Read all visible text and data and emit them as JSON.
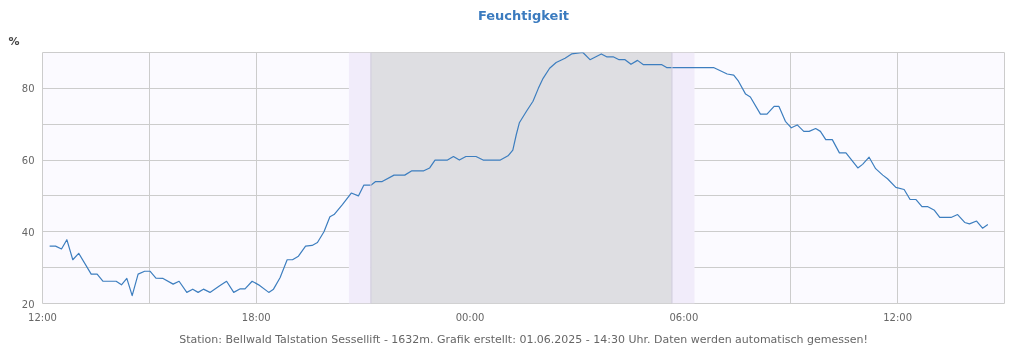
{
  "chart_data": {
    "type": "line",
    "title": "Feuchtigkeit",
    "ylabel": "%",
    "annotations": [
      "Station: Bellwald Talstation Sessellift - 1632m. Grafik erstellt: 01.06.2025 - 14:30 Uhr. Daten werden automatisch gemessen!"
    ],
    "x": [
      "2025-05-31T12:12",
      "2025-05-31T12:22",
      "2025-05-31T12:32",
      "2025-05-31T12:41",
      "2025-05-31T12:51",
      "2025-05-31T13:01",
      "2025-05-31T13:22",
      "2025-05-31T13:32",
      "2025-05-31T13:42",
      "2025-05-31T14:04",
      "2025-05-31T14:13",
      "2025-05-31T14:22",
      "2025-05-31T14:31",
      "2025-05-31T14:41",
      "2025-05-31T14:52",
      "2025-05-31T15:01",
      "2025-05-31T15:11",
      "2025-05-31T15:23",
      "2025-05-31T15:40",
      "2025-05-31T15:50",
      "2025-05-31T16:03",
      "2025-05-31T16:13",
      "2025-05-31T16:22",
      "2025-05-31T16:31",
      "2025-05-31T16:42",
      "2025-05-31T16:59",
      "2025-05-31T17:10",
      "2025-05-31T17:22",
      "2025-05-31T17:33",
      "2025-05-31T17:41",
      "2025-05-31T17:53",
      "2025-05-31T18:04",
      "2025-05-31T18:21",
      "2025-05-31T18:29",
      "2025-05-31T18:40",
      "2025-05-31T18:52",
      "2025-05-31T19:01",
      "2025-05-31T19:11",
      "2025-05-31T19:23",
      "2025-05-31T19:34",
      "2025-05-31T19:43",
      "2025-05-31T19:54",
      "2025-05-31T20:04",
      "2025-05-31T20:11",
      "2025-05-31T20:25",
      "2025-05-31T20:40",
      "2025-05-31T20:52",
      "2025-05-31T21:01",
      "2025-05-31T21:13",
      "2025-05-31T21:21",
      "2025-05-31T21:32",
      "2025-05-31T21:52",
      "2025-05-31T22:10",
      "2025-05-31T22:22",
      "2025-05-31T22:42",
      "2025-05-31T22:52",
      "2025-05-31T23:01",
      "2025-05-31T23:22",
      "2025-05-31T23:32",
      "2025-05-31T23:42",
      "2025-05-31T23:53",
      "2025-06-01T00:10",
      "2025-06-01T00:22",
      "2025-06-01T00:51",
      "2025-06-01T01:04",
      "2025-06-01T01:12",
      "2025-06-01T01:18",
      "2025-06-01T01:23",
      "2025-06-01T01:35",
      "2025-06-01T01:46",
      "2025-06-01T01:55",
      "2025-06-01T02:03",
      "2025-06-01T02:14",
      "2025-06-01T02:25",
      "2025-06-01T02:40",
      "2025-06-01T02:51",
      "2025-06-01T03:10",
      "2025-06-01T03:22",
      "2025-06-01T03:41",
      "2025-06-01T03:50",
      "2025-06-01T04:01",
      "2025-06-01T04:11",
      "2025-06-01T04:21",
      "2025-06-01T04:31",
      "2025-06-01T04:42",
      "2025-06-01T04:52",
      "2025-06-01T05:23",
      "2025-06-01T05:31",
      "2025-06-01T06:50",
      "2025-06-01T07:13",
      "2025-06-01T07:24",
      "2025-06-01T07:32",
      "2025-06-01T07:44",
      "2025-06-01T07:52",
      "2025-06-01T08:09",
      "2025-06-01T08:20",
      "2025-06-01T08:32",
      "2025-06-01T08:40",
      "2025-06-01T08:51",
      "2025-06-01T09:01",
      "2025-06-01T09:11",
      "2025-06-01T09:22",
      "2025-06-01T09:31",
      "2025-06-01T09:42",
      "2025-06-01T09:50",
      "2025-06-01T09:59",
      "2025-06-01T10:10",
      "2025-06-01T10:22",
      "2025-06-01T10:33",
      "2025-06-01T10:53",
      "2025-06-01T11:01",
      "2025-06-01T11:12",
      "2025-06-01T11:23",
      "2025-06-01T11:35",
      "2025-06-01T11:43",
      "2025-06-01T11:57",
      "2025-06-01T12:11",
      "2025-06-01T12:21",
      "2025-06-01T12:31",
      "2025-06-01T12:41",
      "2025-06-01T12:51",
      "2025-06-01T13:02",
      "2025-06-01T13:11",
      "2025-06-01T13:30",
      "2025-06-01T13:41",
      "2025-06-01T13:53",
      "2025-06-01T14:01",
      "2025-06-01T14:13",
      "2025-06-01T14:23",
      "2025-06-01T14:32"
    ],
    "series": [
      {
        "color": "#3d7ebf",
        "values": [
          36,
          36,
          35.2,
          37.8,
          32.2,
          34,
          28.2,
          28.2,
          26.2,
          26.2,
          25.2,
          27,
          22.2,
          28.2,
          29,
          29,
          27.1,
          27,
          25.4,
          26.2,
          23.1,
          24,
          23.1,
          24,
          23.1,
          25,
          26.2,
          23.1,
          24.1,
          24.1,
          26.2,
          25.2,
          23.1,
          24,
          27.2,
          32.2,
          32.2,
          33.2,
          36,
          36.2,
          37,
          40,
          44.2,
          44.8,
          47.6,
          50.8,
          50,
          53,
          53,
          54,
          54,
          55.8,
          55.8,
          57,
          57,
          57.8,
          60,
          60,
          61,
          60,
          61,
          61,
          60,
          60,
          61.2,
          62.8,
          67.2,
          70.4,
          73.6,
          76.4,
          80,
          82.8,
          85.6,
          87.2,
          88.4,
          89.6,
          90,
          88,
          89.6,
          88.8,
          88.8,
          88,
          88,
          86.7,
          87.8,
          86.6,
          86.6,
          85.8,
          85.8,
          84,
          83.7,
          82,
          78.4,
          77.6,
          72.8,
          72.8,
          75,
          75,
          70.8,
          69,
          69.8,
          68,
          68,
          68.8,
          68,
          65.7,
          65.7,
          62,
          62,
          57.8,
          58.8,
          60.8,
          57.6,
          55.8,
          54.8,
          52.4,
          51.8,
          49,
          49,
          47,
          47,
          46,
          44,
          44,
          44.8,
          42.6,
          42.2,
          43,
          41,
          42
        ]
      }
    ],
    "xlim": [
      "2025-05-31T12:00",
      "2025-06-01T15:00"
    ],
    "ylim": [
      20,
      90
    ],
    "xticks": [
      {
        "value": "2025-05-31T12:00",
        "label": "12:00"
      },
      {
        "value": "2025-05-31T15:00",
        "label": null
      },
      {
        "value": "2025-05-31T18:00",
        "label": "18:00"
      },
      {
        "value": "2025-05-31T21:00",
        "label": null
      },
      {
        "value": "2025-06-01T00:00",
        "label": "00:00"
      },
      {
        "value": "2025-06-01T03:00",
        "label": null
      },
      {
        "value": "2025-06-01T06:00",
        "label": "06:00"
      },
      {
        "value": "2025-06-01T09:00",
        "label": null
      },
      {
        "value": "2025-06-01T12:00",
        "label": "12:00"
      },
      {
        "value": "2025-06-01T15:00",
        "label": null
      }
    ],
    "yticks": [
      20,
      {
        "value": 30,
        "label": null
      },
      40,
      {
        "value": 50,
        "label": null
      },
      60,
      {
        "value": 70,
        "label": null
      },
      80
    ],
    "bands": [
      {
        "axis": "x",
        "from": "2025-05-31T20:36",
        "to": "2025-05-31T21:13",
        "color": "#f1ecfa"
      },
      {
        "axis": "x",
        "from": "2025-05-31T21:13",
        "to": "2025-06-01T05:40",
        "color": "#dedee2"
      },
      {
        "axis": "x",
        "from": "2025-06-01T05:40",
        "to": "2025-06-01T06:18",
        "color": "#f1ecfa"
      }
    ],
    "ref_lines": [
      {
        "axis": "x",
        "value": "2025-05-31T21:13",
        "color": "#cfcbdc"
      },
      {
        "axis": "x",
        "value": "2025-06-01T05:40",
        "color": "#cfcbdc"
      }
    ],
    "grid": true
  }
}
